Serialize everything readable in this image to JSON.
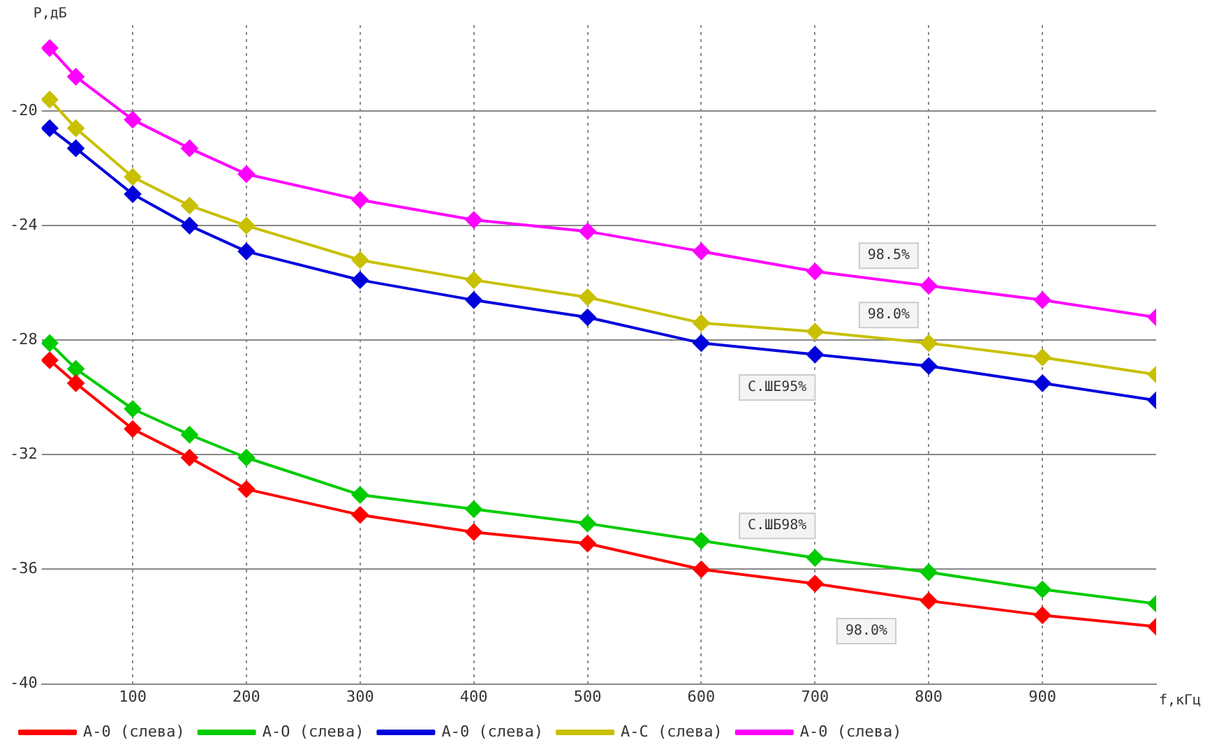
{
  "chart_data": {
    "type": "line",
    "xlabel": "f,кГц",
    "ylabel": "P,дБ",
    "x": [
      27,
      50,
      100,
      150,
      200,
      300,
      400,
      500,
      600,
      700,
      800,
      900,
      1000
    ],
    "series": [
      {
        "name": "А-0 (слева)",
        "color": "#ff0000",
        "values": [
          -28.7,
          -29.5,
          -31.1,
          -32.1,
          -33.2,
          -34.1,
          -34.7,
          -35.1,
          -36.0,
          -36.5,
          -37.1,
          -37.6,
          -38.0
        ]
      },
      {
        "name": "А-О (слева)",
        "color": "#00cc00",
        "values": [
          -28.1,
          -29.0,
          -30.4,
          -31.3,
          -32.1,
          -33.4,
          -33.9,
          -34.4,
          -35.0,
          -35.6,
          -36.1,
          -36.7,
          -37.2
        ]
      },
      {
        "name": "А-0 (слева)",
        "color": "#0000dd",
        "values": [
          -20.6,
          -21.3,
          -22.9,
          -24.0,
          -24.9,
          -25.9,
          -26.6,
          -27.2,
          -28.1,
          -28.5,
          -28.9,
          -29.5,
          -30.1
        ]
      },
      {
        "name": "А-С (слева)",
        "color": "#c8c000",
        "values": [
          -19.6,
          -20.6,
          -22.3,
          -23.3,
          -24.0,
          -25.2,
          -25.9,
          -26.5,
          -27.4,
          -27.7,
          -28.1,
          -28.6,
          -29.2
        ]
      },
      {
        "name": "А-0 (слева)",
        "color": "#ff00ff",
        "values": [
          -17.8,
          -18.8,
          -20.3,
          -21.3,
          -22.2,
          -23.1,
          -23.8,
          -24.2,
          -24.9,
          -25.6,
          -26.1,
          -26.6,
          -27.2
        ]
      }
    ],
    "xlim": [
      20,
      1000
    ],
    "xticks": [
      100,
      200,
      300,
      400,
      500,
      600,
      700,
      800,
      900
    ],
    "ylim": [
      -40,
      -17
    ],
    "yticks": [
      -20,
      -24,
      -28,
      -32,
      -36,
      -40
    ],
    "grid": true,
    "legend": "bottom",
    "marker": "diamond",
    "line_style": "solid",
    "annotations": [
      "98.5%",
      "98.0%",
      "С.ШЕ95%",
      "С.ШБ98%",
      "98.0%"
    ]
  }
}
